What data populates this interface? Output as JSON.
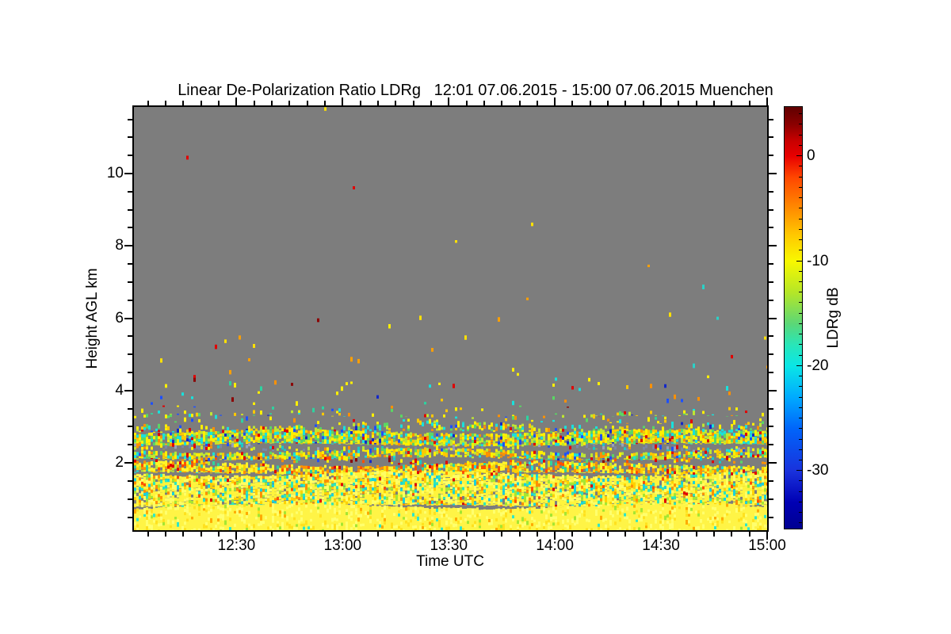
{
  "figure": {
    "title": "Linear De-Polarization Ratio LDRg   12:01 07.06.2015 - 15:00 07.06.2015 Muenchen",
    "site": "Muenchen",
    "background_color": "#ffffff",
    "no_data_color": "#7d7d7d"
  },
  "axes": {
    "x": {
      "label": "Time UTC",
      "start_label": "12:01",
      "end_label": "15:00",
      "start_min": 721,
      "end_min": 900,
      "minor_step_min": 5,
      "major_ticks": [
        {
          "min": 750,
          "label": "12:30"
        },
        {
          "min": 780,
          "label": "13:00"
        },
        {
          "min": 810,
          "label": "13:30"
        },
        {
          "min": 840,
          "label": "14:00"
        },
        {
          "min": 870,
          "label": "14:30"
        },
        {
          "min": 900,
          "label": "15:00"
        }
      ]
    },
    "y": {
      "label": "Height AGL km",
      "min_km": 0.14,
      "max_km": 11.84,
      "minor_step_km": 0.5,
      "major_ticks": [
        {
          "km": 2,
          "label": "2"
        },
        {
          "km": 4,
          "label": "4"
        },
        {
          "km": 6,
          "label": "6"
        },
        {
          "km": 8,
          "label": "8"
        },
        {
          "km": 10,
          "label": "10"
        }
      ]
    }
  },
  "colorbar": {
    "label": "LDRg dB",
    "max_db": 4.7,
    "min_db": -35.5,
    "minor_step_db": 1,
    "major_ticks": [
      {
        "db": 0,
        "label": "0"
      },
      {
        "db": -10,
        "label": "-10"
      },
      {
        "db": -20,
        "label": "-20"
      },
      {
        "db": -30,
        "label": "-30"
      }
    ],
    "gradient": [
      [
        4.7,
        "#600000"
      ],
      [
        3.0,
        "#8c0000"
      ],
      [
        1.5,
        "#c80000"
      ],
      [
        0.0,
        "#e80000"
      ],
      [
        -2.0,
        "#ff4600"
      ],
      [
        -5.0,
        "#ff8c00"
      ],
      [
        -7.5,
        "#ffc800"
      ],
      [
        -10.0,
        "#f8f800"
      ],
      [
        -13.0,
        "#b4e628"
      ],
      [
        -16.0,
        "#5ad778"
      ],
      [
        -18.0,
        "#28e6b9"
      ],
      [
        -20.0,
        "#0ae6e6"
      ],
      [
        -23.0,
        "#00aaff"
      ],
      [
        -26.0,
        "#0064fa"
      ],
      [
        -30.0,
        "#1932dc"
      ],
      [
        -33.0,
        "#0000b4"
      ],
      [
        -35.5,
        "#000091"
      ]
    ]
  },
  "chart_data": {
    "type": "heatmap",
    "title": "Linear De-Polarization Ratio LDRg",
    "time_range": [
      "12:01 07.06.2015",
      "15:00 07.06.2015"
    ],
    "xlabel": "Time UTC",
    "ylabel": "Height AGL km",
    "value_label": "LDRg dB",
    "y_range_km": [
      0.14,
      11.84
    ],
    "value_range_db": [
      -35.5,
      4.7
    ],
    "no_data_color": "#7d7d7d",
    "seed": 1337,
    "cell": {
      "w": 3,
      "h": 4
    },
    "palettes": {
      "sparse_hi": [
        [
          "#ffe100",
          3
        ],
        [
          "#ffa000",
          2.5
        ],
        [
          "#e10000",
          1.5
        ],
        [
          "#8c0000",
          0.8
        ],
        [
          "#fff000",
          2
        ],
        [
          "#2ad2c8",
          1.2
        ],
        [
          "#2864ff",
          0.8
        ]
      ],
      "sparse_mid": [
        [
          "#fff000",
          4
        ],
        [
          "#ffc800",
          2
        ],
        [
          "#ff9100",
          1.6
        ],
        [
          "#e10000",
          1
        ],
        [
          "#19e1dc",
          2
        ],
        [
          "#2ed2a0",
          1.4
        ],
        [
          "#5ad764",
          1.2
        ],
        [
          "#1e50ff",
          1
        ],
        [
          "#1428c8",
          0.6
        ],
        [
          "#8c0000",
          0.5
        ]
      ],
      "speckle": [
        [
          "#fff000",
          5
        ],
        [
          "#bee632",
          3.5
        ],
        [
          "#5ad764",
          2.5
        ],
        [
          "#19e1dc",
          3
        ],
        [
          "#ffc800",
          1.5
        ],
        [
          "#ff9100",
          1
        ],
        [
          "#e10000",
          0.5
        ],
        [
          "#1e50ff",
          0.7
        ],
        [
          "#1428c8",
          0.4
        ]
      ],
      "bluegray": [
        [
          "#7b88a5",
          3
        ],
        [
          "#98a2bb",
          2
        ],
        [
          "#19c8c8",
          1.3
        ],
        [
          "#fff000",
          2.2
        ],
        [
          "#ff9100",
          1.2
        ],
        [
          "#e10000",
          0.6
        ],
        [
          "#1e50ff",
          1
        ],
        [
          "#bee632",
          1
        ]
      ],
      "speckle2": [
        [
          "#fff000",
          5
        ],
        [
          "#bee632",
          3
        ],
        [
          "#19e1dc",
          2.2
        ],
        [
          "#5ad764",
          1.8
        ],
        [
          "#ffc800",
          2
        ],
        [
          "#ff9100",
          1.6
        ],
        [
          "#e10000",
          0.7
        ],
        [
          "#1e50ff",
          0.5
        ]
      ],
      "gap_warm": [
        [
          "#ff9100",
          2.5
        ],
        [
          "#ff5000",
          1.6
        ],
        [
          "#e10000",
          1
        ],
        [
          "#8c0000",
          0.5
        ],
        [
          "#fff000",
          2.5
        ],
        [
          "#19c8c8",
          1.4
        ],
        [
          "#5ad764",
          0.8
        ],
        [
          "#1e50ff",
          0.8
        ],
        [
          "#1428c8",
          0.5
        ]
      ],
      "warm": [
        [
          "#fff428",
          6
        ],
        [
          "#ffd200",
          3
        ],
        [
          "#ff9100",
          2.5
        ],
        [
          "#ff5000",
          1.2
        ],
        [
          "#e10000",
          0.7
        ],
        [
          "#2ed2a0",
          1.2
        ],
        [
          "#bee632",
          1
        ],
        [
          "#19e1dc",
          0.8
        ]
      ],
      "low": [
        [
          "#fff43c",
          12
        ],
        [
          "#ffff64",
          6
        ],
        [
          "#ffd200",
          3
        ],
        [
          "#ff9100",
          1.2
        ],
        [
          "#2ee6b9",
          2
        ],
        [
          "#19d2dc",
          1.6
        ],
        [
          "#a5e632",
          2
        ],
        [
          "#e10000",
          0.3
        ],
        [
          "#ff5000",
          0.5
        ]
      ],
      "lowest": [
        [
          "#fff446",
          14
        ],
        [
          "#ffff6e",
          8
        ],
        [
          "#ffe11e",
          4
        ],
        [
          "#ffaa00",
          0.9
        ],
        [
          "#a5e632",
          1
        ],
        [
          "#2ee6c8",
          0.7
        ]
      ]
    },
    "bands": [
      {
        "h": [
          6.1,
          11.84
        ],
        "density": 0.0005,
        "palette": "sparse_hi"
      },
      {
        "h": [
          4.3,
          6.1
        ],
        "density": 0.004,
        "palette": "sparse_hi"
      },
      {
        "h": [
          3.5,
          4.3
        ],
        "density": 0.018,
        "palette": "sparse_mid"
      },
      {
        "h": [
          3.36,
          3.5
        ],
        "density": 0.06,
        "palette": "sparse_mid"
      },
      {
        "h": [
          3.27,
          3.36
        ],
        "density": 0.16,
        "palette": "speckle"
      },
      {
        "h": [
          3.08,
          3.27
        ],
        "density": 0.08,
        "palette": "sparse_mid"
      },
      {
        "h": [
          2.86,
          3.08
        ],
        "density": 0.3,
        "palette": "speckle"
      },
      {
        "h": [
          2.5,
          2.86
        ],
        "density": 0.85,
        "palette": "speckle"
      },
      {
        "h": [
          2.34,
          2.5
        ],
        "density": 0.3,
        "palette": "bluegray"
      },
      {
        "h": [
          2.12,
          2.34
        ],
        "density": 0.68,
        "palette": "speckle2"
      },
      {
        "h": [
          1.97,
          2.12
        ],
        "density": 0.22,
        "palette": "gap_warm"
      },
      {
        "h": [
          1.7,
          1.97
        ],
        "density": 0.8,
        "palette": "warm"
      },
      {
        "h": [
          0.8,
          1.7
        ],
        "density": 0.96,
        "palette": "low"
      },
      {
        "h": [
          0.14,
          0.8
        ],
        "density": 1.0,
        "palette": "lowest",
        "base_fill": true
      }
    ]
  }
}
